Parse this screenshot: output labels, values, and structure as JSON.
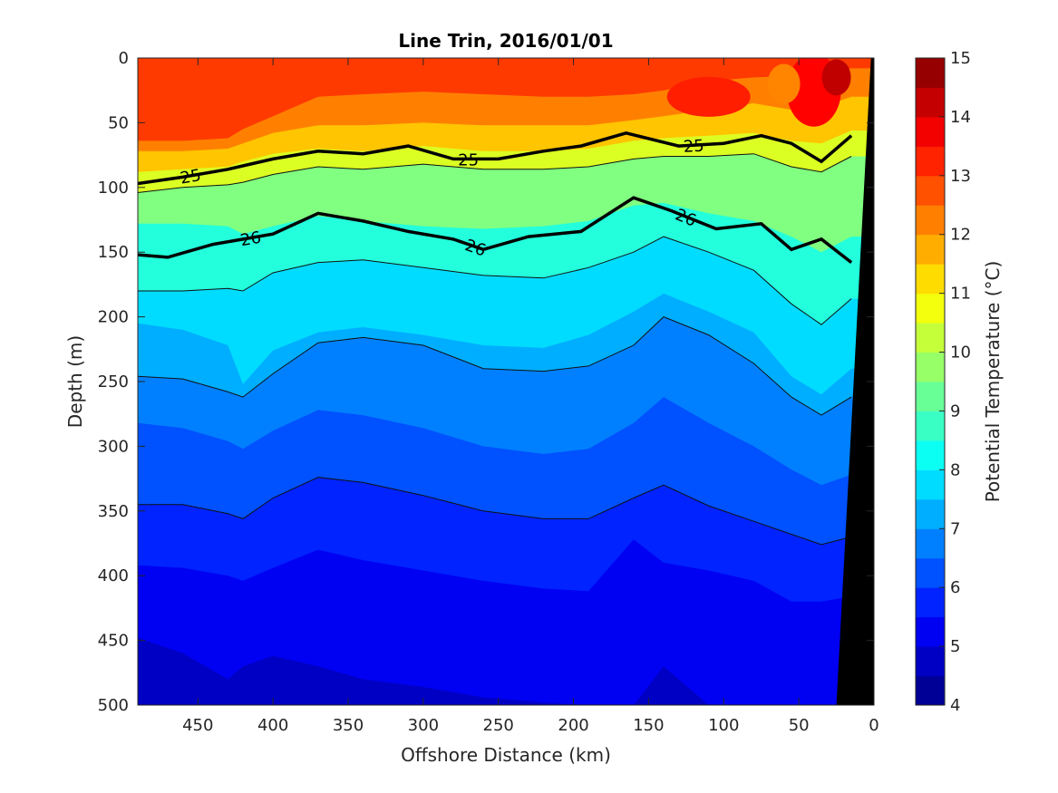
{
  "chart_data": {
    "type": "heatmap",
    "subtype": "filled-contour section",
    "title": "Line Trin, 2016/01/01",
    "xlabel": "Offshore Distance (km)",
    "ylabel": "Depth (m)",
    "colorbar_label": "Potential Temperature (°C)",
    "x_reversed": true,
    "y_reversed": true,
    "xlim": [
      490,
      0
    ],
    "ylim": [
      0,
      500
    ],
    "x_ticks": [
      "450",
      "400",
      "350",
      "300",
      "250",
      "200",
      "150",
      "100",
      "50",
      "0"
    ],
    "y_ticks": [
      "0",
      "50",
      "100",
      "150",
      "200",
      "250",
      "300",
      "350",
      "400",
      "450",
      "500"
    ],
    "clim": [
      4,
      15
    ],
    "colorbar_ticks": [
      "4",
      "5",
      "6",
      "7",
      "8",
      "9",
      "10",
      "11",
      "12",
      "13",
      "14",
      "15"
    ],
    "colormap": "jet",
    "sample_x_km": [
      490,
      460,
      430,
      420,
      400,
      370,
      340,
      300,
      260,
      220,
      190,
      160,
      140,
      110,
      80,
      55,
      35,
      15
    ],
    "isotherm_depths_m": [
      {
        "temp": 12.5,
        "depths": [
          64,
          64,
          62,
          55,
          45,
          30,
          28,
          26,
          28,
          30,
          30,
          28,
          25,
          18,
          15,
          14,
          12,
          8
        ]
      },
      {
        "temp": 12,
        "depths": [
          72,
          72,
          70,
          66,
          58,
          52,
          52,
          50,
          52,
          52,
          52,
          48,
          45,
          40,
          35,
          40,
          38,
          30
        ]
      },
      {
        "temp": 11,
        "depths": [
          88,
          86,
          84,
          80,
          74,
          70,
          72,
          68,
          72,
          72,
          70,
          64,
          62,
          60,
          58,
          64,
          66,
          56
        ]
      },
      {
        "temp": 10,
        "depths": [
          104,
          100,
          98,
          96,
          90,
          84,
          86,
          82,
          86,
          86,
          84,
          78,
          76,
          76,
          74,
          84,
          88,
          76
        ]
      },
      {
        "temp": 9,
        "depths": [
          128,
          128,
          130,
          136,
          130,
          122,
          126,
          130,
          132,
          130,
          126,
          114,
          112,
          120,
          126,
          138,
          150,
          138
        ]
      },
      {
        "temp": 8,
        "depths": [
          180,
          180,
          178,
          180,
          166,
          158,
          156,
          162,
          168,
          170,
          162,
          150,
          138,
          150,
          164,
          190,
          206,
          186
        ]
      },
      {
        "temp": 7.5,
        "depths": [
          205,
          210,
          222,
          252,
          226,
          212,
          208,
          214,
          222,
          224,
          214,
          196,
          182,
          196,
          212,
          246,
          260,
          240
        ]
      },
      {
        "temp": 7,
        "depths": [
          246,
          248,
          258,
          262,
          244,
          220,
          216,
          222,
          240,
          242,
          238,
          222,
          200,
          214,
          236,
          262,
          276,
          262
        ]
      },
      {
        "temp": 6.5,
        "depths": [
          282,
          286,
          296,
          302,
          288,
          272,
          276,
          286,
          300,
          306,
          302,
          282,
          262,
          282,
          300,
          318,
          330,
          322
        ]
      },
      {
        "temp": 6,
        "depths": [
          345,
          345,
          352,
          356,
          340,
          324,
          328,
          338,
          350,
          356,
          356,
          340,
          330,
          346,
          358,
          368,
          376,
          370
        ]
      },
      {
        "temp": 5.5,
        "depths": [
          392,
          394,
          400,
          404,
          394,
          380,
          388,
          396,
          404,
          410,
          412,
          372,
          390,
          396,
          404,
          420,
          420,
          416
        ]
      },
      {
        "temp": 5,
        "depths": [
          448,
          460,
          480,
          470,
          462,
          470,
          480,
          486,
          494,
          498,
          500,
          500,
          470,
          500,
          500,
          500,
          500,
          500
        ]
      }
    ],
    "density_contours": [
      {
        "label": "25",
        "x": [
          490,
          460,
          430,
          400,
          370,
          340,
          310,
          280,
          250,
          220,
          195,
          165,
          130,
          100,
          75,
          55,
          35,
          15
        ],
        "depth": [
          97,
          92,
          86,
          78,
          72,
          74,
          68,
          78,
          78,
          72,
          68,
          58,
          68,
          66,
          60,
          66,
          80,
          60
        ]
      },
      {
        "label": "26",
        "x": [
          490,
          470,
          440,
          400,
          370,
          340,
          310,
          280,
          260,
          230,
          195,
          160,
          135,
          105,
          75,
          55,
          35,
          15
        ],
        "depth": [
          152,
          154,
          144,
          136,
          120,
          126,
          134,
          140,
          148,
          138,
          134,
          108,
          118,
          132,
          128,
          148,
          140,
          158
        ]
      }
    ]
  }
}
